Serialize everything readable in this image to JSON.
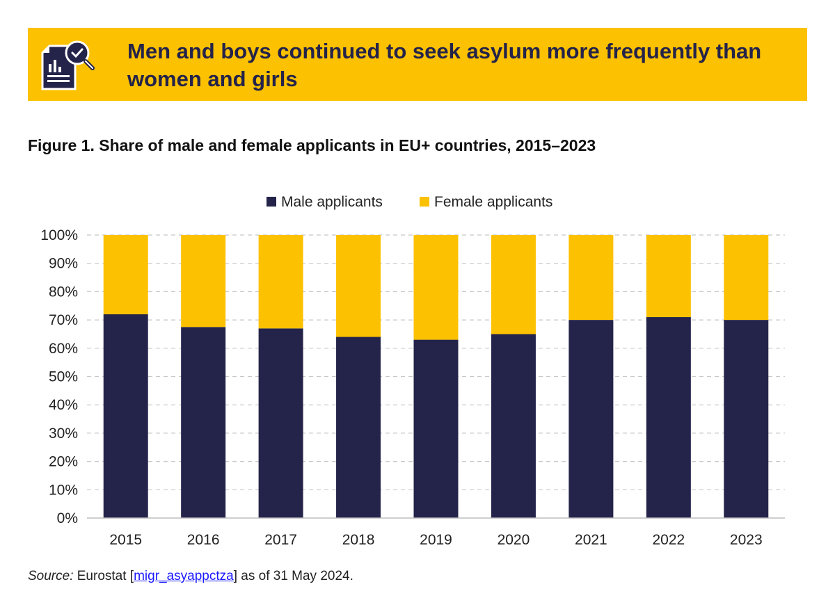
{
  "banner": {
    "title": "Men and boys continued to seek asylum more frequently than women and girls",
    "icon": "report-chart-magnifier-icon"
  },
  "figure": {
    "title": "Figure 1. Share of male and female applicants in EU+ countries, 2015–2023"
  },
  "source": {
    "label": "Source:",
    "text_before": " Eurostat [",
    "link_text": "migr_asyappctza",
    "text_after": "] as of 31 May 2024."
  },
  "colors": {
    "male": "#24234a",
    "female": "#fcc100",
    "banner": "#fcc100",
    "grid": "#c8c8c8"
  },
  "chart_data": {
    "type": "bar",
    "stacked": true,
    "title": "Figure 1. Share of male and female applicants in EU+ countries, 2015–2023",
    "categories": [
      "2015",
      "2016",
      "2017",
      "2018",
      "2019",
      "2020",
      "2021",
      "2022",
      "2023"
    ],
    "series": [
      {
        "name": "Male applicants",
        "values": [
          72,
          67.5,
          67,
          64,
          63,
          65,
          70,
          71,
          70
        ]
      },
      {
        "name": "Female applicants",
        "values": [
          28,
          32.5,
          33,
          36,
          37,
          35,
          30,
          29,
          30
        ]
      }
    ],
    "yticks": [
      "0%",
      "10%",
      "20%",
      "30%",
      "40%",
      "50%",
      "60%",
      "70%",
      "80%",
      "90%",
      "100%"
    ],
    "ylim": [
      0,
      100
    ],
    "grid": true,
    "legend": "top-center"
  }
}
